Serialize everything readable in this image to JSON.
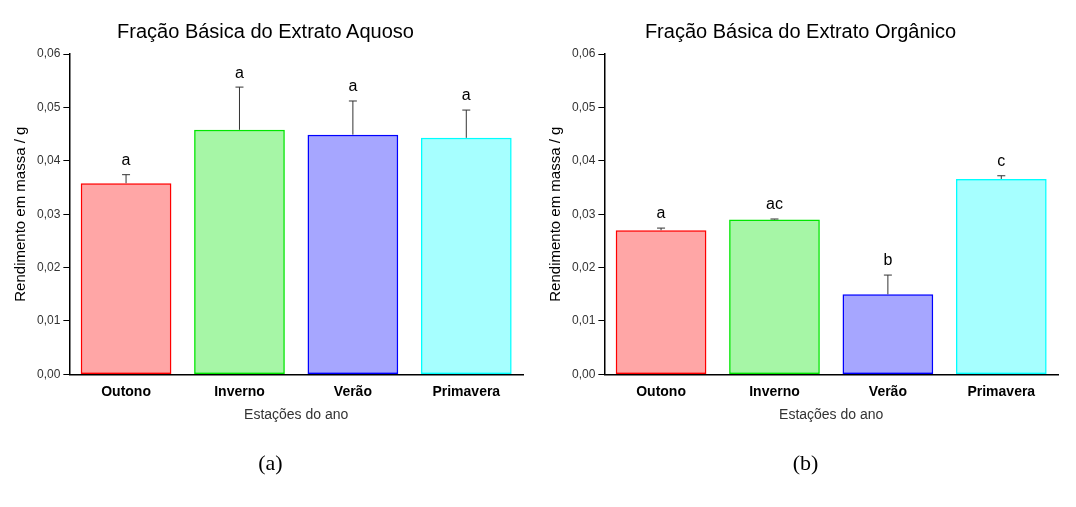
{
  "chart_data": [
    {
      "type": "bar",
      "title": "Fração Básica do Extrato Aquoso",
      "xlabel": "Estações do ano",
      "ylabel": "Rendimento em massa / g",
      "categories": [
        "Outono",
        "Inverno",
        "Verão",
        "Primavera"
      ],
      "values": [
        0.0358,
        0.0458,
        0.0449,
        0.0443
      ],
      "colors": [
        "#ff0000",
        "#00e600",
        "#0000ff",
        "#00ffff"
      ],
      "errors": [
        [
          0.0358,
          0.0374
        ],
        [
          0.0458,
          0.0538
        ],
        [
          0.0449,
          0.0512
        ],
        [
          0.0443,
          0.0495
        ]
      ],
      "ylim": [
        0,
        0.06
      ],
      "yticks": [
        {
          "value": 0,
          "label": "0,00"
        },
        {
          "value": 0.01,
          "label": "0,01"
        },
        {
          "value": 0.02,
          "label": "0,02"
        },
        {
          "value": 0.03,
          "label": "0,03"
        },
        {
          "value": 0.04,
          "label": "0,04"
        },
        {
          "value": 0.05,
          "label": "0,05"
        },
        {
          "value": 0.06,
          "label": "0,06"
        }
      ],
      "grid": false,
      "legend": false,
      "annotations": [
        {
          "text": "a",
          "x": "Outono",
          "y": 0.0374
        },
        {
          "text": "a",
          "x": "Inverno",
          "y": 0.0538
        },
        {
          "text": "a",
          "x": "Verão",
          "y": 0.0512
        },
        {
          "text": "a",
          "x": "Primavera",
          "y": 0.0495
        },
        "(a)"
      ]
    },
    {
      "type": "bar",
      "title": "Fração Básica do Extrato Orgânico",
      "xlabel": "Estações do ano",
      "ylabel": "Rendimento em massa / g",
      "categories": [
        "Outono",
        "Inverno",
        "Verão",
        "Primavera"
      ],
      "values": [
        0.027,
        0.029,
        0.015,
        0.0366
      ],
      "colors": [
        "#ff0000",
        "#00e600",
        "#0000ff",
        "#00ffff"
      ],
      "errors": [
        [
          0.027,
          0.0274
        ],
        [
          0.029,
          0.0291
        ],
        [
          0.015,
          0.0186
        ],
        [
          0.0366,
          0.0372
        ]
      ],
      "ylim": [
        0,
        0.06
      ],
      "yticks": [
        {
          "value": 0,
          "label": "0,00"
        },
        {
          "value": 0.01,
          "label": "0,01"
        },
        {
          "value": 0.02,
          "label": "0,02"
        },
        {
          "value": 0.03,
          "label": "0,03"
        },
        {
          "value": 0.04,
          "label": "0,04"
        },
        {
          "value": 0.05,
          "label": "0,05"
        },
        {
          "value": 0.06,
          "label": "0,06"
        }
      ],
      "grid": false,
      "legend": false,
      "annotations": [
        {
          "text": "a",
          "x": "Outono",
          "y": 0.0274
        },
        {
          "text": "ac",
          "x": "Inverno",
          "y": 0.0291
        },
        {
          "text": "b",
          "x": "Verão",
          "y": 0.0186
        },
        {
          "text": "c",
          "x": "Primavera",
          "y": 0.0372
        },
        "(b)"
      ]
    }
  ]
}
